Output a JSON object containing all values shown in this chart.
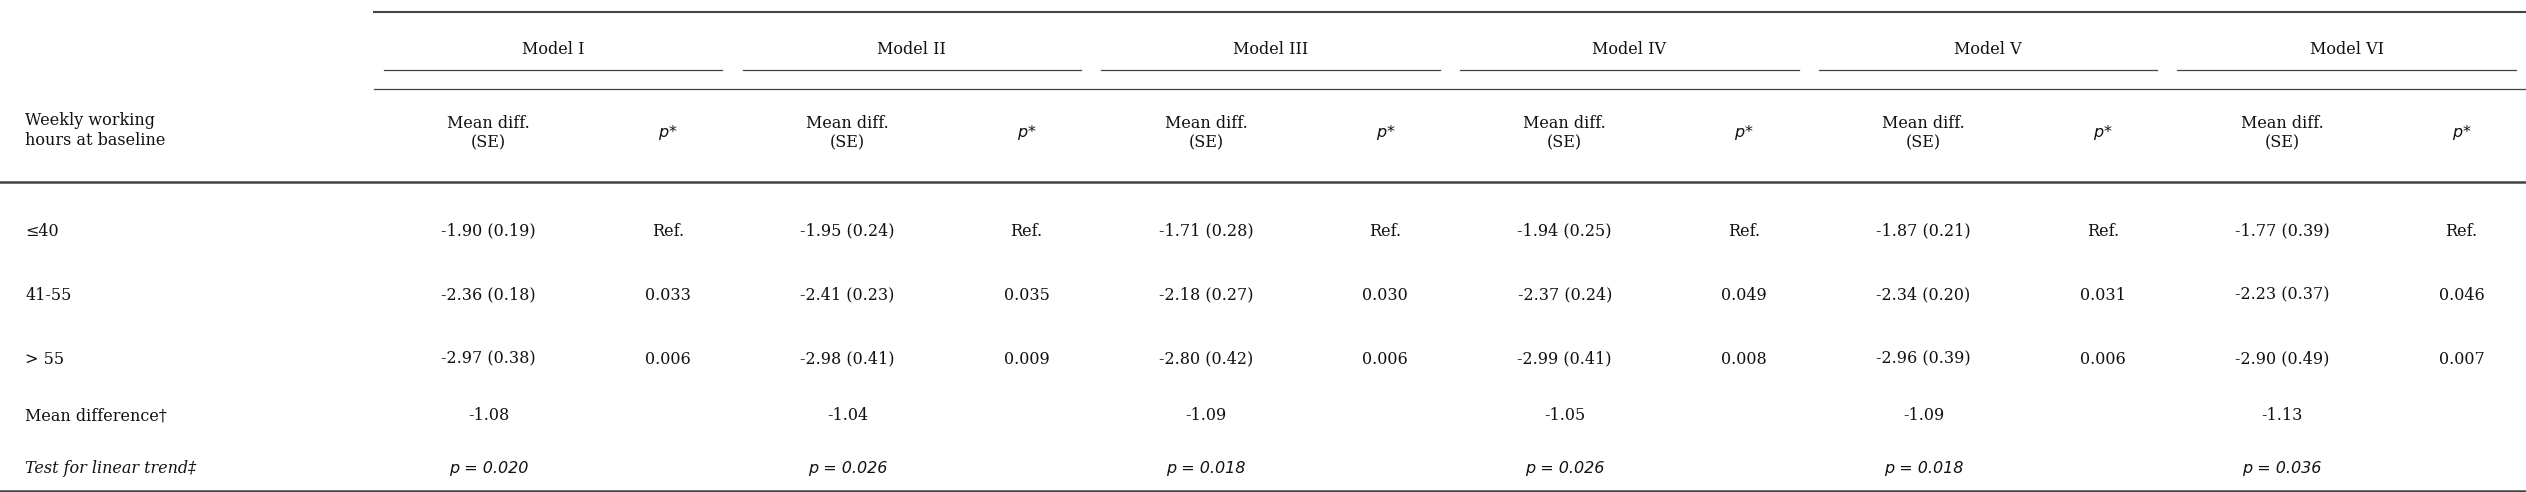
{
  "model_names": [
    "Model I",
    "Model II",
    "Model III",
    "Model IV",
    "Model V",
    "Model VI"
  ],
  "row_labels": [
    "≤40",
    "41-55",
    "> 55",
    "Mean difference†",
    "Test for linear trend‡"
  ],
  "header_label": "Weekly working\nhours at baseline",
  "subheader": [
    "Mean diff.\n(SE)",
    "p*"
  ],
  "data": [
    [
      "-1.90 (0.19)",
      "Ref.",
      "-1.95 (0.24)",
      "Ref.",
      "-1.71 (0.28)",
      "Ref.",
      "-1.94 (0.25)",
      "Ref.",
      "-1.87 (0.21)",
      "Ref.",
      "-1.77 (0.39)",
      "Ref."
    ],
    [
      "-2.36 (0.18)",
      "0.033",
      "-2.41 (0.23)",
      "0.035",
      "-2.18 (0.27)",
      "0.030",
      "-2.37 (0.24)",
      "0.049",
      "-2.34 (0.20)",
      "0.031",
      "-2.23 (0.37)",
      "0.046"
    ],
    [
      "-2.97 (0.38)",
      "0.006",
      "-2.98 (0.41)",
      "0.009",
      "-2.80 (0.42)",
      "0.006",
      "-2.99 (0.41)",
      "0.008",
      "-2.96 (0.39)",
      "0.006",
      "-2.90 (0.49)",
      "0.007"
    ],
    [
      "-1.08",
      "",
      "-1.04",
      "",
      "-1.09",
      "",
      "-1.05",
      "",
      "-1.09",
      "",
      "-1.13",
      ""
    ],
    [
      "p = 0.020",
      "",
      "p = 0.026",
      "",
      "p = 0.018",
      "",
      "p = 0.026",
      "",
      "p = 0.018",
      "",
      "p = 0.036",
      ""
    ]
  ],
  "bg_color": "#ffffff",
  "text_color": "#111111",
  "line_color": "#444444",
  "font_size": 11.5,
  "header_font_size": 11.5,
  "font_family": "DejaVu Serif"
}
